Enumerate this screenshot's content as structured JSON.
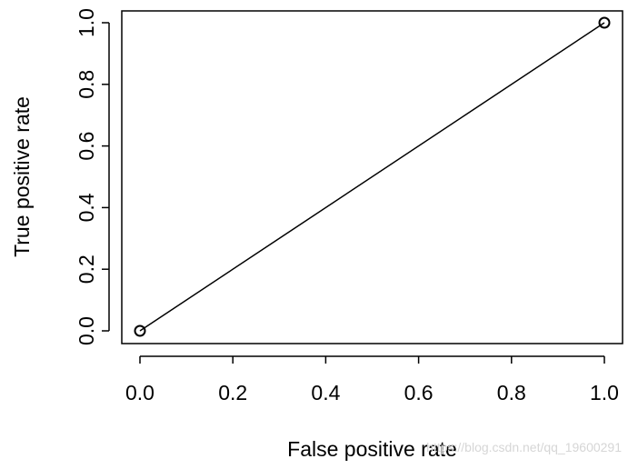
{
  "chart_data": {
    "type": "line",
    "title": "",
    "xlabel": "False positive rate",
    "ylabel": "True positive rate",
    "xlim": [
      0,
      1
    ],
    "ylim": [
      0,
      1
    ],
    "x_ticks": [
      "0.0",
      "0.2",
      "0.4",
      "0.6",
      "0.8",
      "1.0"
    ],
    "y_ticks": [
      "0.0",
      "0.2",
      "0.4",
      "0.6",
      "0.8",
      "1.0"
    ],
    "grid": false,
    "legend": "none",
    "series": [
      {
        "x": [
          0.0,
          1.0
        ],
        "y": [
          0.0,
          1.0
        ],
        "marker": "open-circle",
        "line": "solid"
      }
    ]
  },
  "watermark": "https://blog.csdn.net/qq_19600291",
  "colors": {
    "line": "#000000",
    "axes": "#000000",
    "background": "#ffffff",
    "watermark": "#d6d6d6"
  }
}
